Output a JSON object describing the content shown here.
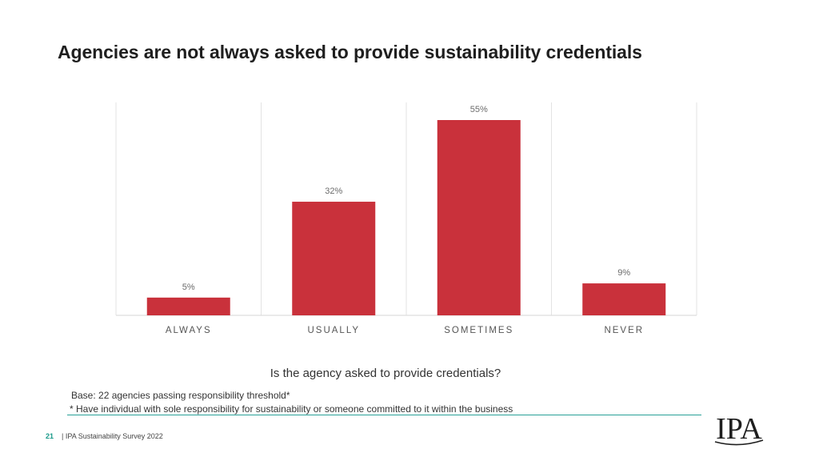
{
  "slide": {
    "title": "Agencies are not always asked to provide sustainability credentials",
    "question": "Is the agency asked to provide credentials?",
    "base_note": "Base: 22 agencies passing responsibility threshold*",
    "footnote": "* Have individual with sole responsibility for sustainability or someone committed to it within the business",
    "page_number": "21",
    "footer_text": "| IPA Sustainability Survey 2022",
    "logo_text": "IPA"
  },
  "colors": {
    "bar": "#c9313b",
    "grid": "#e3e3e3",
    "label": "#6b6b6b",
    "axis_text": "#555555",
    "accent_rule": "#2aa198"
  },
  "chart_data": {
    "type": "bar",
    "title": "",
    "xlabel": "Is the agency asked to provide credentials?",
    "ylabel": "",
    "categories": [
      "ALWAYS",
      "USUALLY",
      "SOMETIMES",
      "NEVER"
    ],
    "values": [
      5,
      32,
      55,
      9
    ],
    "value_labels": [
      "5%",
      "32%",
      "55%",
      "9%"
    ],
    "unit": "%",
    "ylim": [
      0,
      60
    ],
    "grid": "vertical separators"
  }
}
